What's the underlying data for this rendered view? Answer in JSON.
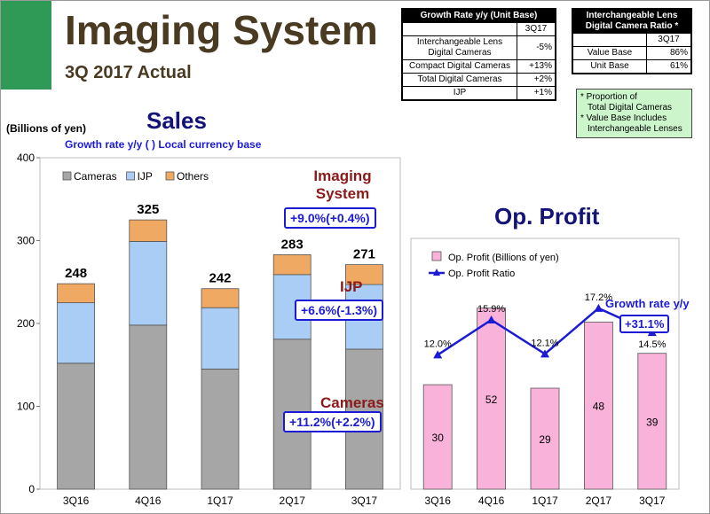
{
  "header": {
    "title": "Imaging System",
    "subtitle": "3Q 2017 Actual"
  },
  "growth_table": {
    "title": "Growth Rate y/y  (Unit Base)",
    "column": "3Q17",
    "rows": [
      {
        "label": "Interchangeable Lens Digital Cameras",
        "value": "-5%"
      },
      {
        "label": "Compact Digital Cameras",
        "value": "+13%"
      },
      {
        "label": "Total Digital Cameras",
        "value": "+2%"
      },
      {
        "label": "IJP",
        "value": "+1%"
      }
    ]
  },
  "ratio_table": {
    "title": "Interchangeable Lens Digital Camera Ratio *",
    "column": "3Q17",
    "rows": [
      {
        "label": "Value Base",
        "value": "86%"
      },
      {
        "label": "Unit Base",
        "value": "61%"
      }
    ]
  },
  "notes": [
    "* Proportion of",
    "  Total Digital Cameras",
    "* Value Base Includes",
    "  Interchangeable Lenses"
  ],
  "sales_panel": {
    "title": "Sales",
    "unit": "(Billions of yen)",
    "growth_note": "Growth rate y/y  ( ) Local currency base",
    "callouts": {
      "imaging_label": "Imaging System",
      "imaging_value": "+9.0%(+0.4%)",
      "ijp_label": "IJP",
      "ijp_value": "+6.6%(-1.3%)",
      "cameras_label": "Cameras",
      "cameras_value": "+11.2%(+2.2%)"
    }
  },
  "profit_panel": {
    "title": "Op. Profit",
    "growth_label": "Growth rate y/y",
    "growth_value": "+31.1%"
  },
  "chart_data": [
    {
      "type": "bar",
      "stacked": true,
      "categories": [
        "3Q16",
        "4Q16",
        "1Q17",
        "2Q17",
        "3Q17"
      ],
      "series": [
        {
          "name": "Cameras",
          "color": "#a6a6a6",
          "values": [
            152,
            198,
            145,
            181,
            169
          ]
        },
        {
          "name": "IJP",
          "color": "#a9cdf4",
          "values": [
            73,
            101,
            74,
            78,
            78
          ]
        },
        {
          "name": "Others",
          "color": "#f0a963",
          "values": [
            23,
            26,
            23,
            24,
            24
          ]
        }
      ],
      "totals": [
        "248",
        "325",
        "242",
        "283",
        "271"
      ],
      "ylim": [
        0,
        400
      ],
      "yticks": [
        "0",
        "100",
        "200",
        "300",
        "400"
      ],
      "ylabel": "(Billions of yen)",
      "legend_position": "top",
      "grid": false
    },
    {
      "type": "bar",
      "categories": [
        "3Q16",
        "4Q16",
        "1Q17",
        "2Q17",
        "3Q17"
      ],
      "series": [
        {
          "name": "Op. Profit (Billions of yen)",
          "color": "#f9b3da",
          "values": [
            30,
            52,
            29,
            48,
            39
          ],
          "labels": [
            "30",
            "52",
            "29",
            "48",
            "39"
          ]
        },
        {
          "name": "Op. Profit Ratio",
          "type": "line",
          "color": "#1b1bd6",
          "values": [
            12.0,
            15.9,
            12.1,
            17.2,
            14.5
          ],
          "labels": [
            "12.0%",
            "15.9%",
            "12.1%",
            "17.2%",
            "14.5%"
          ]
        }
      ],
      "bar_ylim": [
        0,
        72
      ],
      "ratio_ylim": [
        -3,
        25
      ],
      "legend_position": "top-left",
      "grid": false
    }
  ]
}
